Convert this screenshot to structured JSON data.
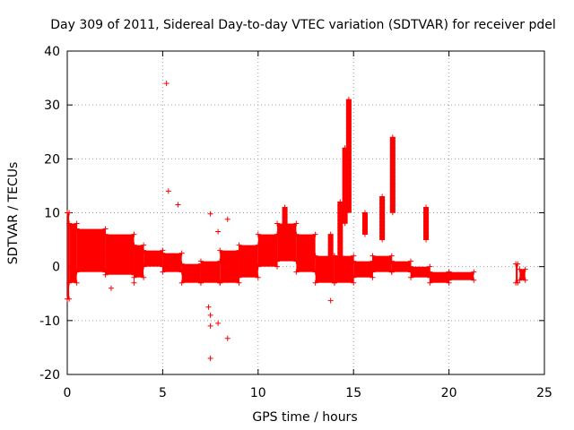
{
  "chart_data": {
    "type": "scatter",
    "title": "Day 309 of 2011, Sidereal Day-to-day VTEC variation (SDTVAR) for receiver pdel",
    "xlabel": "GPS time / hours",
    "ylabel": "SDTVAR / TECUs",
    "xlim": [
      0,
      25
    ],
    "ylim": [
      -20,
      40
    ],
    "xticks": [
      0,
      5,
      10,
      15,
      20,
      25
    ],
    "yticks": [
      -20,
      -10,
      0,
      10,
      20,
      30,
      40
    ],
    "grid": true,
    "marker": "+",
    "color": "#ff0000",
    "series": [
      {
        "name": "pdel",
        "bands": [
          {
            "x0": 0.0,
            "x1": 0.1,
            "lo": -6,
            "hi": 10
          },
          {
            "x0": 0.1,
            "x1": 0.5,
            "lo": -3,
            "hi": 8
          },
          {
            "x0": 0.5,
            "x1": 2.0,
            "lo": -1,
            "hi": 7
          },
          {
            "x0": 2.0,
            "x1": 3.5,
            "lo": -1.5,
            "hi": 6
          },
          {
            "x0": 3.5,
            "x1": 4.0,
            "lo": -2,
            "hi": 4
          },
          {
            "x0": 4.0,
            "x1": 5.0,
            "lo": 0,
            "hi": 3
          },
          {
            "x0": 5.0,
            "x1": 6.0,
            "lo": -1,
            "hi": 2.5
          },
          {
            "x0": 6.0,
            "x1": 7.0,
            "lo": -3,
            "hi": 0.5
          },
          {
            "x0": 7.0,
            "x1": 8.0,
            "lo": -3,
            "hi": 1
          },
          {
            "x0": 8.0,
            "x1": 9.0,
            "lo": -3,
            "hi": 3
          },
          {
            "x0": 9.0,
            "x1": 10.0,
            "lo": -2,
            "hi": 4
          },
          {
            "x0": 10.0,
            "x1": 11.0,
            "lo": 0,
            "hi": 6
          },
          {
            "x0": 11.0,
            "x1": 12.0,
            "lo": 1,
            "hi": 8
          },
          {
            "x0": 12.0,
            "x1": 13.0,
            "lo": -1,
            "hi": 6
          },
          {
            "x0": 13.0,
            "x1": 14.0,
            "lo": -3,
            "hi": 2
          },
          {
            "x0": 14.0,
            "x1": 15.0,
            "lo": -3,
            "hi": 2
          },
          {
            "x0": 15.0,
            "x1": 16.0,
            "lo": -2,
            "hi": 1
          },
          {
            "x0": 16.0,
            "x1": 17.0,
            "lo": -1,
            "hi": 2
          },
          {
            "x0": 17.0,
            "x1": 18.0,
            "lo": -1,
            "hi": 1
          },
          {
            "x0": 18.0,
            "x1": 19.0,
            "lo": -2,
            "hi": 0
          },
          {
            "x0": 19.0,
            "x1": 20.0,
            "lo": -3,
            "hi": -1
          },
          {
            "x0": 20.0,
            "x1": 21.3,
            "lo": -2.5,
            "hi": -1
          },
          {
            "x0": 23.5,
            "x1": 23.6,
            "lo": -3,
            "hi": 0.5
          },
          {
            "x0": 23.7,
            "x1": 24.0,
            "lo": -2.5,
            "hi": -0.5
          }
        ],
        "spikes": [
          {
            "x": 11.4,
            "lo": 6,
            "hi": 11
          },
          {
            "x": 13.8,
            "lo": 2,
            "hi": 6
          },
          {
            "x": 14.3,
            "lo": 2,
            "hi": 12
          },
          {
            "x": 14.55,
            "lo": 8,
            "hi": 22
          },
          {
            "x": 14.75,
            "lo": 10,
            "hi": 31
          },
          {
            "x": 15.6,
            "lo": 6,
            "hi": 10
          },
          {
            "x": 16.5,
            "lo": 5,
            "hi": 13
          },
          {
            "x": 17.05,
            "lo": 10,
            "hi": 24
          },
          {
            "x": 18.8,
            "lo": 5,
            "hi": 11
          }
        ],
        "points": [
          {
            "x": 5.2,
            "y": 34
          },
          {
            "x": 5.3,
            "y": 14
          },
          {
            "x": 5.8,
            "y": 11.5
          },
          {
            "x": 7.5,
            "y": 9.8
          },
          {
            "x": 8.4,
            "y": 8.8
          },
          {
            "x": 7.9,
            "y": 6.5
          },
          {
            "x": 7.4,
            "y": -7.5
          },
          {
            "x": 7.5,
            "y": -9
          },
          {
            "x": 7.5,
            "y": -11
          },
          {
            "x": 7.9,
            "y": -10.5
          },
          {
            "x": 8.4,
            "y": -13.3
          },
          {
            "x": 7.5,
            "y": -17
          },
          {
            "x": 13.8,
            "y": -6.3
          },
          {
            "x": 2.3,
            "y": -4
          },
          {
            "x": 3.5,
            "y": -3
          }
        ]
      }
    ]
  }
}
